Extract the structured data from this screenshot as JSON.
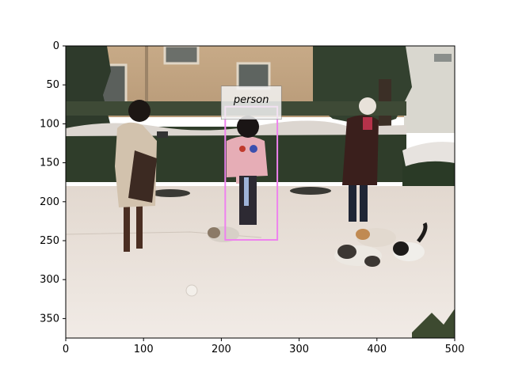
{
  "axes": {
    "x_ticks": [
      0,
      100,
      200,
      300,
      400,
      500
    ],
    "y_ticks": [
      0,
      50,
      100,
      150,
      200,
      250,
      300,
      350
    ],
    "xlim": [
      0,
      500
    ],
    "ylim": [
      375,
      0
    ]
  },
  "annotation": {
    "label": "person",
    "box_color": "#ee82ee",
    "box": {
      "x1": 205,
      "y1": 78,
      "x2": 272,
      "y2": 249
    }
  },
  "scene": {
    "description_icon": "photo-snowy-courtyard",
    "colors": {
      "snow": "#e9e1da",
      "hedge": "#2f3d2a",
      "building": "#c9ad8c",
      "tree": "#3b4a35"
    }
  }
}
